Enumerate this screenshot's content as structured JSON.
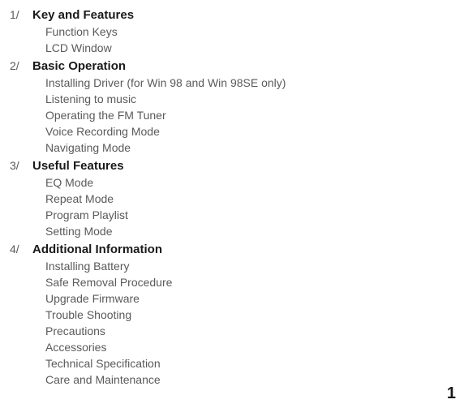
{
  "sections": [
    {
      "num": "1/",
      "title": "Key and Features",
      "items": [
        "Function Keys",
        "LCD Window"
      ]
    },
    {
      "num": "2/",
      "title": "Basic Operation",
      "items": [
        "Installing Driver (for Win 98 and Win 98SE only)",
        "Listening to music",
        "Operating the FM Tuner",
        "Voice Recording Mode",
        "Navigating Mode"
      ]
    },
    {
      "num": "3/",
      "title": "Useful Features",
      "items": [
        "EQ Mode",
        "Repeat Mode",
        "Program Playlist",
        "Setting Mode"
      ]
    },
    {
      "num": "4/",
      "title": "Additional Information",
      "items": [
        "Installing Battery",
        "Safe Removal Procedure",
        "Upgrade Firmware",
        "Trouble Shooting",
        "Precautions",
        "Accessories",
        "Technical Specification",
        "Care and Maintenance"
      ]
    }
  ],
  "page_number": "1"
}
